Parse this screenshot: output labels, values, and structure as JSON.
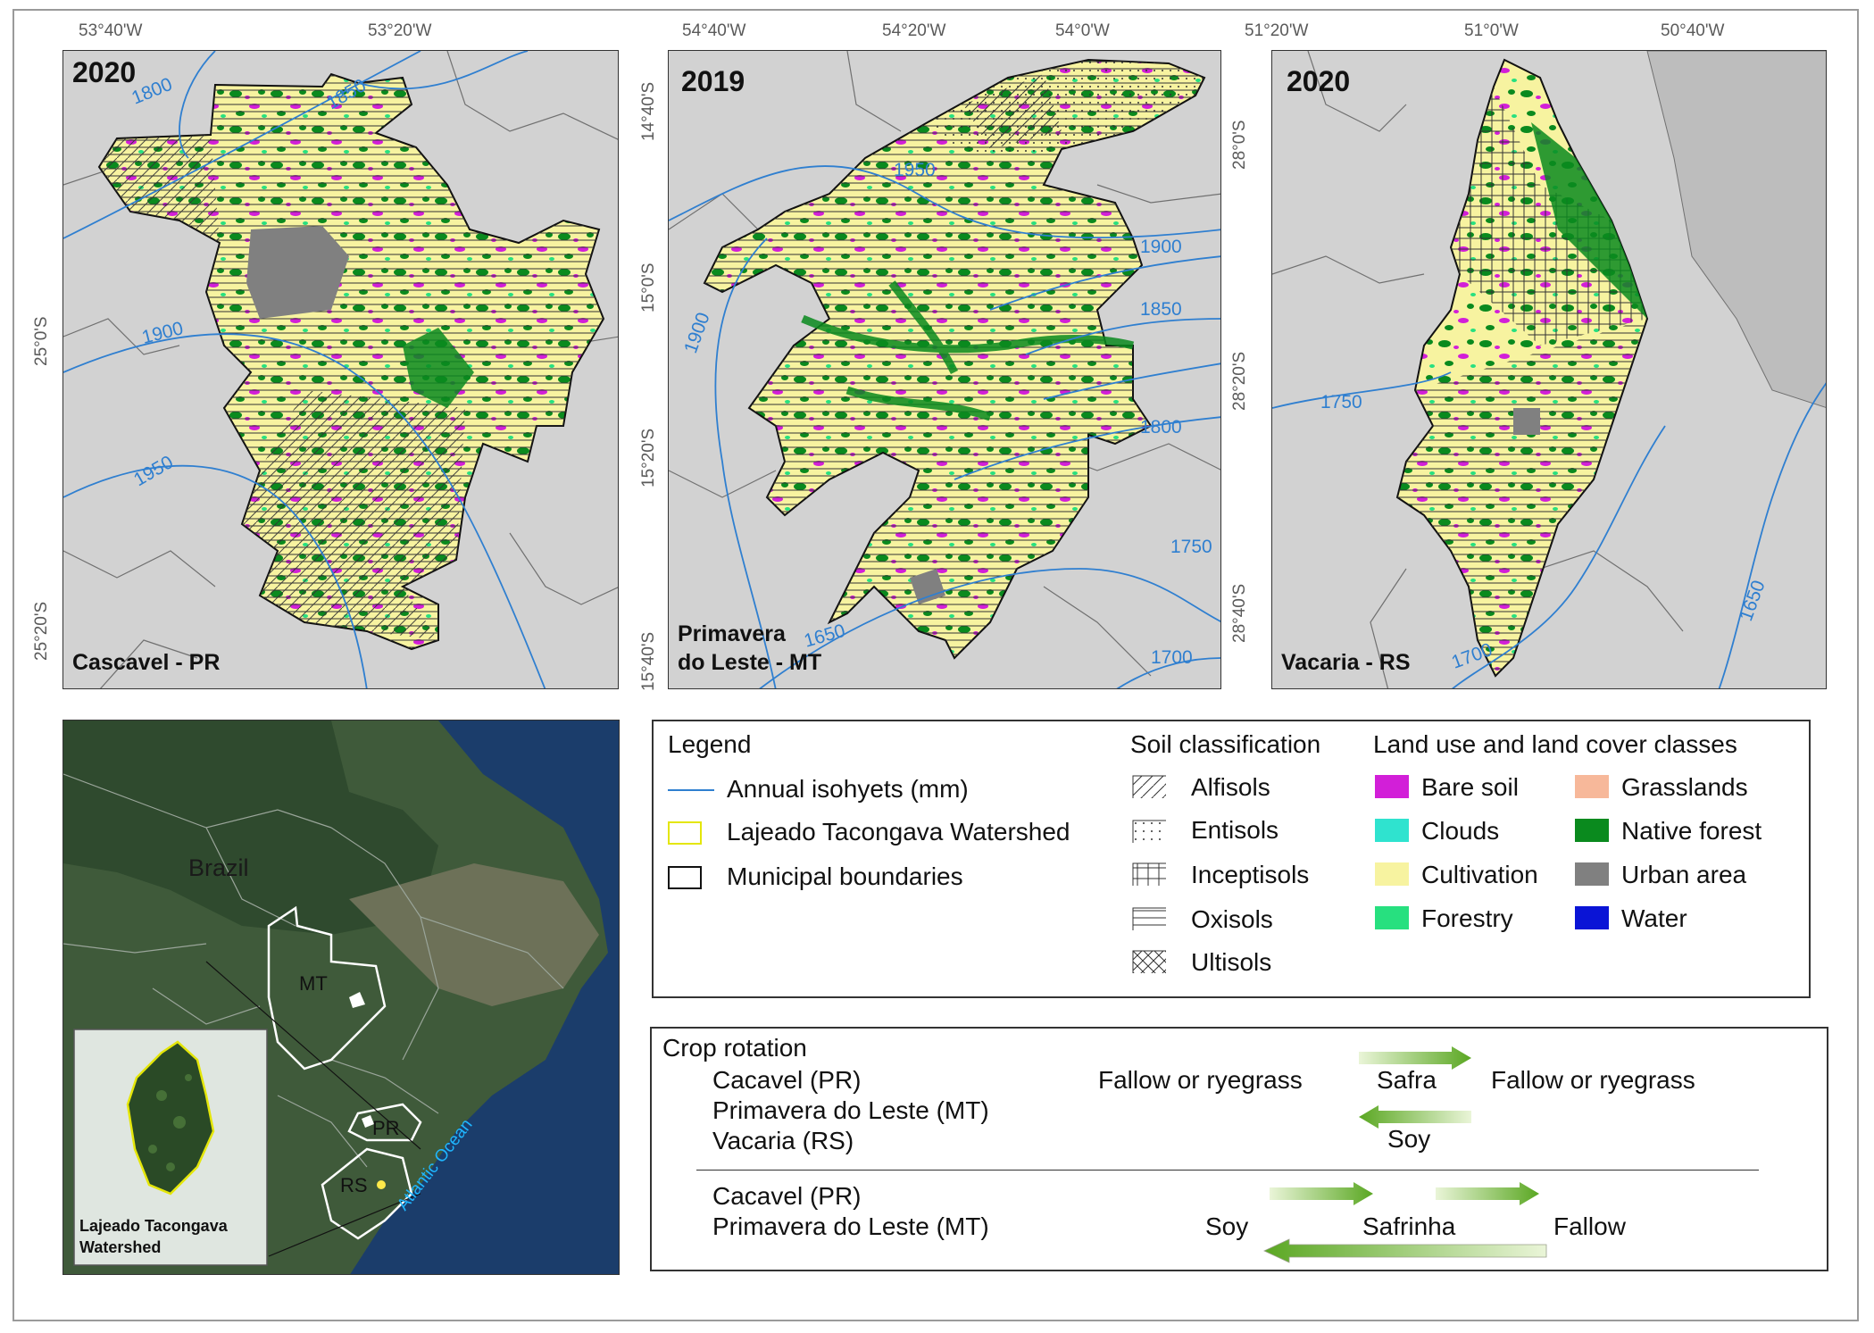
{
  "maps": [
    {
      "year": "2020",
      "place": "Cascavel - PR",
      "lon_ticks": [
        "53°40'W",
        "53°20'W"
      ],
      "lat_ticks": [
        "25°0'S",
        "25°20'S"
      ],
      "isohyets": [
        "1800",
        "1850",
        "1900",
        "1950"
      ]
    },
    {
      "year": "2019",
      "place_line1": "Primavera",
      "place_line2": "do Leste - MT",
      "lon_ticks": [
        "54°40'W",
        "54°20'W",
        "54°0'W"
      ],
      "lat_ticks": [
        "14°40'S",
        "15°0'S",
        "15°20'S",
        "15°40'S"
      ],
      "isohyets": [
        "1950",
        "1900",
        "1900",
        "1850",
        "1800",
        "1750",
        "1700",
        "1650"
      ]
    },
    {
      "year": "2020",
      "place": "Vacaria - RS",
      "lon_ticks": [
        "51°20'W",
        "51°0'W",
        "50°40'W"
      ],
      "lat_ticks": [
        "28°0'S",
        "28°20'S",
        "28°40'S"
      ],
      "isohyets": [
        "1750",
        "1700",
        "1650"
      ]
    }
  ],
  "inset": {
    "country": "Brazil",
    "states": [
      "MT",
      "PR",
      "RS"
    ],
    "ocean": "Atlantic Ocean",
    "watershed_line1": "Lajeado Tacongava",
    "watershed_line2": "Watershed"
  },
  "legend": {
    "title": "Legend",
    "items": [
      "Annual isohyets (mm)",
      "Lajeado Tacongava Watershed",
      "Municipal boundaries"
    ],
    "soil_title": "Soil classification",
    "soils": [
      "Alfisols",
      "Entisols",
      "Inceptisols",
      "Oxisols",
      "Ultisols"
    ],
    "lulc_title": "Land use and land cover classes",
    "lulc_col1": [
      {
        "label": "Bare soil",
        "color": "#d21fd8"
      },
      {
        "label": "Clouds",
        "color": "#2fe3cf"
      },
      {
        "label": "Cultivation",
        "color": "#f7f3a0"
      },
      {
        "label": "Forestry",
        "color": "#27e07f"
      }
    ],
    "lulc_col2": [
      {
        "label": "Grasslands",
        "color": "#f7b89a"
      },
      {
        "label": "Native forest",
        "color": "#0a8a1e"
      },
      {
        "label": "Urban area",
        "color": "#808080"
      },
      {
        "label": "Water",
        "color": "#0a14d6"
      }
    ]
  },
  "crop": {
    "title": "Crop rotation",
    "group1": [
      "Cacavel (PR)",
      "Primavera do Leste (MT)",
      "Vacaria (RS)"
    ],
    "g1_left": "Fallow or ryegrass",
    "g1_top": "Safra",
    "g1_right": "Fallow or ryegrass",
    "g1_bottom": "Soy",
    "group2": [
      "Cacavel (PR)",
      "Primavera do Leste (MT)"
    ],
    "g2_left": "Soy",
    "g2_mid": "Safrinha",
    "g2_right": "Fallow"
  },
  "colors": {
    "isohyet": "#2f7fd0",
    "background_land": "#d2d2d2",
    "cultivation": "#f7f3a0",
    "native_forest": "#0a8a1e",
    "bare_soil": "#d21fd8",
    "urban": "#808080",
    "arrow": "#6cb52d"
  }
}
